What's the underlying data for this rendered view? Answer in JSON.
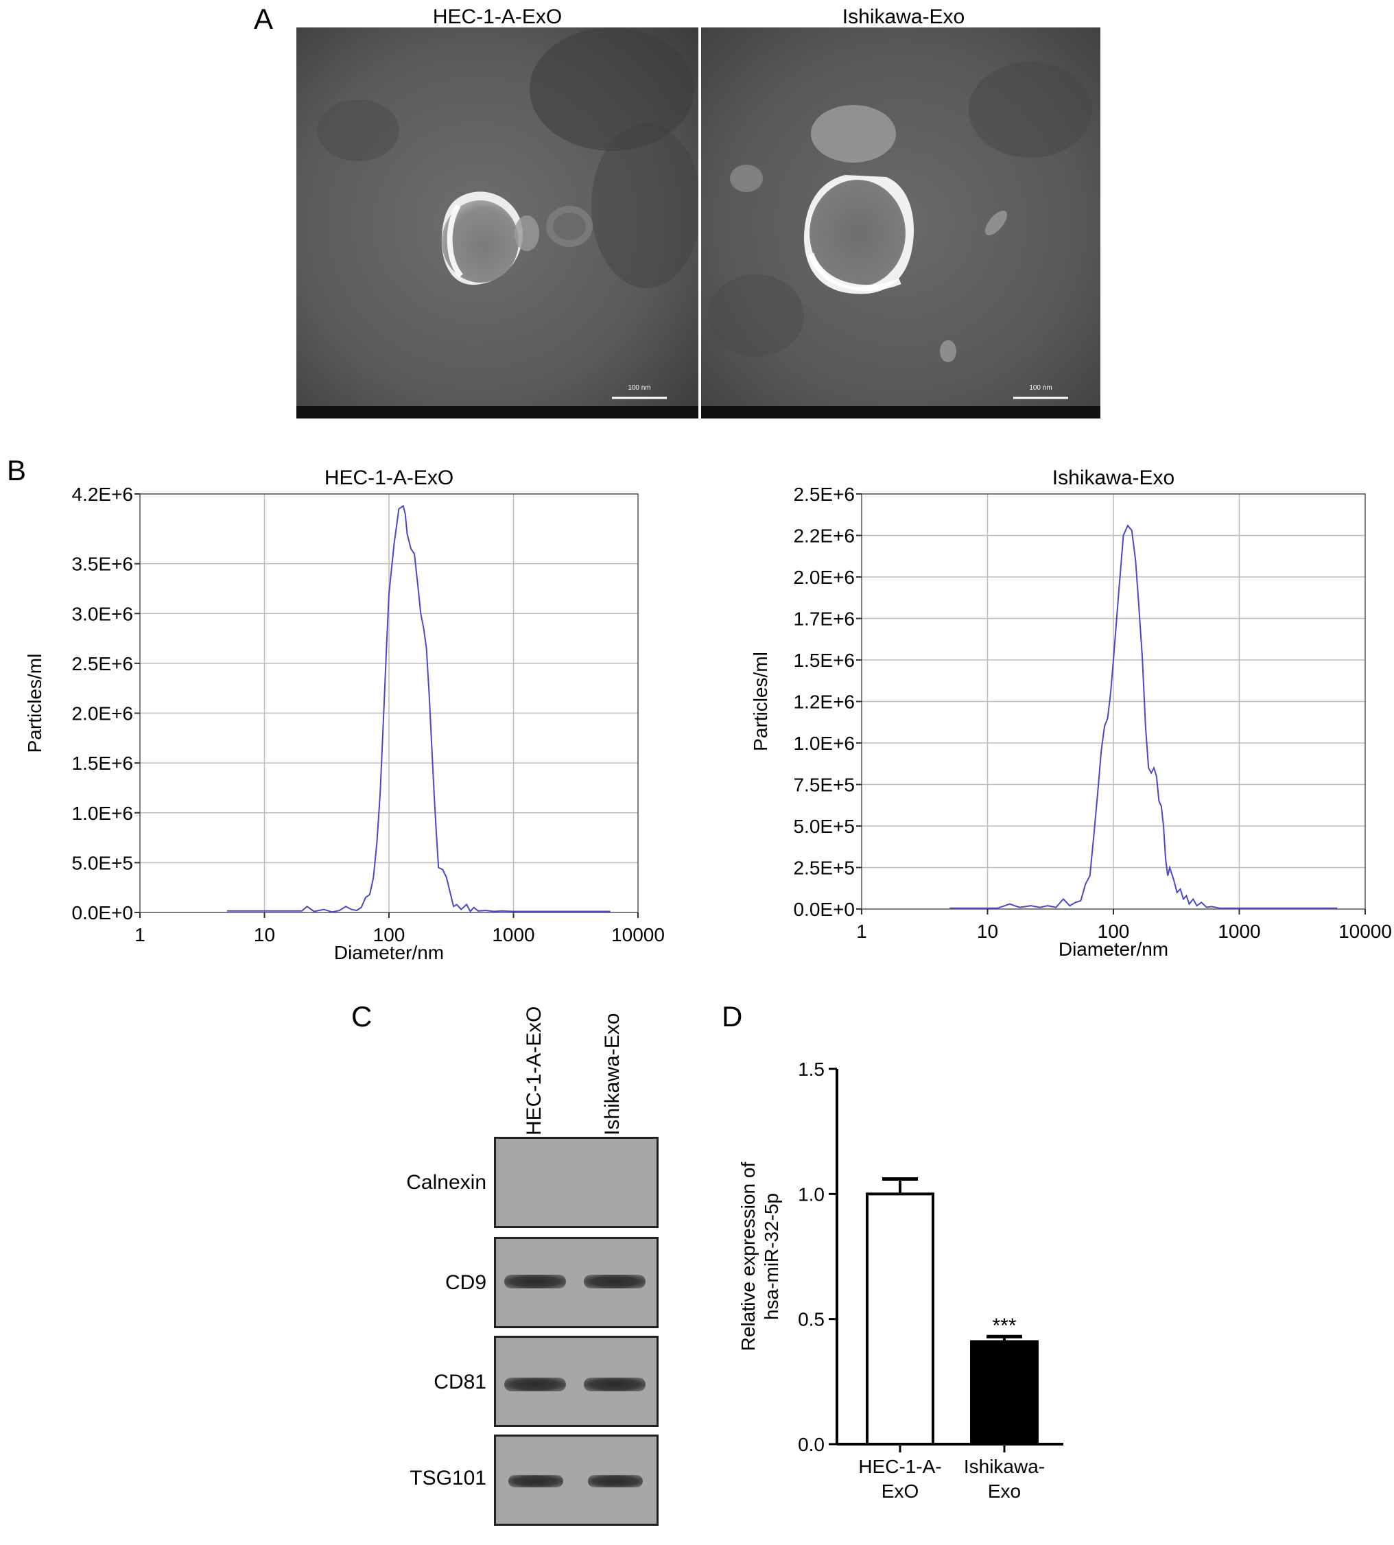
{
  "panels": {
    "a": {
      "letter": "A",
      "images": [
        {
          "title": "HEC-1-A-ExO",
          "scale_label": "100 nm"
        },
        {
          "title": "Ishikawa-Exo",
          "scale_label": "100 nm"
        }
      ]
    },
    "b": {
      "letter": "B"
    },
    "c": {
      "letter": "C",
      "lanes": [
        "HEC-1-A-ExO",
        "Ishikawa-Exo"
      ],
      "proteins": [
        "Calnexin",
        "CD9",
        "CD81",
        "TSG101"
      ],
      "band_presence": {
        "Calnexin": [
          0,
          0
        ],
        "CD9": [
          1,
          1
        ],
        "CD81": [
          1,
          1
        ],
        "TSG101": [
          1,
          1
        ]
      }
    },
    "d": {
      "letter": "D"
    }
  },
  "chart_data": [
    {
      "type": "line",
      "title": "HEC-1-A-ExO",
      "xlabel": "Diameter/nm",
      "ylabel": "Particles/ml",
      "xscale": "log",
      "xlim": [
        1,
        10000
      ],
      "xticks": [
        "1",
        "10",
        "100",
        "1000",
        "10000"
      ],
      "yticks": [
        "0.0E+0",
        "5.0E+5",
        "1.0E+6",
        "1.5E+6",
        "2.0E+6",
        "2.5E+6",
        "3.0E+6",
        "3.5E+6",
        "4.2E+6"
      ],
      "ytick_values": [
        0,
        500000,
        1000000,
        1500000,
        2000000,
        2500000,
        3000000,
        3500000,
        4200000
      ],
      "ylim": [
        0,
        4200000
      ],
      "grid": true,
      "color": "#4a48c8",
      "series": [
        {
          "x": [
            5,
            20,
            22,
            25,
            30,
            35,
            40,
            45,
            50,
            55,
            60,
            65,
            70,
            75,
            80,
            85,
            90,
            95,
            100,
            110,
            120,
            130,
            135,
            140,
            150,
            160,
            170,
            180,
            190,
            200,
            210,
            220,
            230,
            240,
            250,
            270,
            290,
            310,
            330,
            350,
            380,
            420,
            450,
            480,
            520,
            600,
            700,
            800,
            1000,
            2000,
            6000
          ],
          "y": [
            15000,
            15000,
            60000,
            10000,
            30000,
            5000,
            20000,
            60000,
            30000,
            20000,
            50000,
            150000,
            180000,
            350000,
            700000,
            1200000,
            1900000,
            2600000,
            3200000,
            3700000,
            4050000,
            4080000,
            4000000,
            3800000,
            3650000,
            3600000,
            3300000,
            3000000,
            2850000,
            2650000,
            2200000,
            1700000,
            1200000,
            800000,
            450000,
            430000,
            350000,
            200000,
            60000,
            80000,
            30000,
            80000,
            10000,
            50000,
            15000,
            20000,
            10000,
            15000,
            10000,
            10000,
            10000
          ]
        }
      ]
    },
    {
      "type": "line",
      "title": "Ishikawa-Exo",
      "xlabel": "Diameter/nm",
      "ylabel": "Particles/ml",
      "xscale": "log",
      "xlim": [
        1,
        10000
      ],
      "xticks": [
        "1",
        "10",
        "100",
        "1000",
        "10000"
      ],
      "yticks": [
        "0.0E+0",
        "2.5E+5",
        "5.0E+5",
        "7.5E+5",
        "1.0E+6",
        "1.2E+6",
        "1.5E+6",
        "1.7E+6",
        "2.0E+6",
        "2.2E+6",
        "2.5E+6"
      ],
      "ytick_values": [
        0,
        250000,
        500000,
        750000,
        1000000,
        1250000,
        1500000,
        1750000,
        2000000,
        2250000,
        2500000
      ],
      "ylim": [
        0,
        2500000
      ],
      "grid": true,
      "color": "#4a48c8",
      "series": [
        {
          "x": [
            5,
            12,
            15,
            18,
            22,
            26,
            30,
            35,
            40,
            45,
            50,
            55,
            60,
            65,
            70,
            75,
            80,
            85,
            90,
            95,
            100,
            110,
            120,
            130,
            140,
            150,
            160,
            170,
            180,
            190,
            200,
            210,
            220,
            230,
            240,
            250,
            260,
            270,
            280,
            300,
            320,
            340,
            360,
            380,
            400,
            430,
            460,
            500,
            550,
            600,
            700,
            800,
            1000,
            2000,
            6000
          ],
          "y": [
            5000,
            5000,
            30000,
            10000,
            20000,
            10000,
            20000,
            10000,
            60000,
            20000,
            40000,
            50000,
            150000,
            200000,
            450000,
            700000,
            950000,
            1100000,
            1150000,
            1300000,
            1500000,
            1900000,
            2250000,
            2310000,
            2280000,
            2100000,
            1800000,
            1500000,
            1100000,
            850000,
            820000,
            850000,
            800000,
            650000,
            620000,
            500000,
            300000,
            200000,
            250000,
            180000,
            100000,
            120000,
            60000,
            80000,
            30000,
            60000,
            20000,
            40000,
            10000,
            15000,
            5000,
            5000,
            5000,
            5000,
            5000
          ]
        }
      ]
    },
    {
      "type": "bar",
      "categories": [
        "HEC-1-A-ExO",
        "Ishikawa-Exo"
      ],
      "category_lines": [
        [
          "HEC-1-A-",
          "ExO"
        ],
        [
          "Ishikawa-",
          "Exo"
        ]
      ],
      "values": [
        1.0,
        0.41
      ],
      "errors": [
        0.06,
        0.02
      ],
      "colors": [
        "#ffffff",
        "#000000"
      ],
      "significance": [
        "",
        "***"
      ],
      "ylabel_lines": [
        "Relative expression of",
        "hsa-miR-32-5p"
      ],
      "yticks": [
        "0.0",
        "0.5",
        "1.0",
        "1.5"
      ],
      "ylim": [
        0,
        1.5
      ]
    }
  ]
}
